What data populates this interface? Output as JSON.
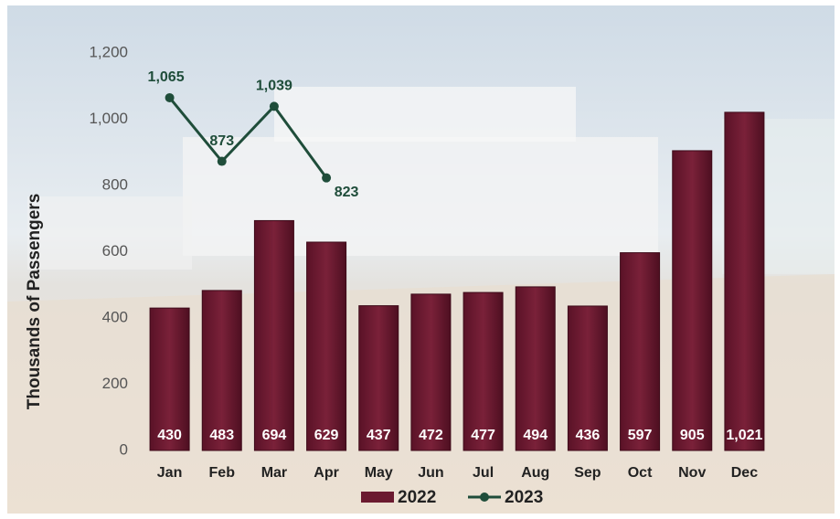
{
  "chart_data": {
    "type": "bar",
    "y_label": "Thousands of Passengers",
    "categories": [
      "Jan",
      "Feb",
      "Mar",
      "Apr",
      "May",
      "Jun",
      "Jul",
      "Aug",
      "Sep",
      "Oct",
      "Nov",
      "Dec"
    ],
    "series": [
      {
        "name": "2022",
        "type": "bar",
        "color": "#6b1a30",
        "values": [
          430,
          483,
          694,
          629,
          437,
          472,
          477,
          494,
          436,
          597,
          905,
          1021
        ],
        "value_labels": [
          "430",
          "483",
          "694",
          "629",
          "437",
          "472",
          "477",
          "494",
          "436",
          "597",
          "905",
          "1,021"
        ]
      },
      {
        "name": "2023",
        "type": "line",
        "color": "#1f4d3a",
        "values": [
          1065,
          873,
          1039,
          823,
          null,
          null,
          null,
          null,
          null,
          null,
          null,
          null
        ],
        "value_labels": [
          "1,065",
          "873",
          "1,039",
          "823",
          null,
          null,
          null,
          null,
          null,
          null,
          null,
          null
        ]
      }
    ],
    "ylim": [
      0,
      1200
    ],
    "yticks": [
      0,
      200,
      400,
      600,
      800,
      {
        "value": 1000,
        "label": "1,000"
      },
      {
        "value": 1200,
        "label": "1,200"
      }
    ],
    "grid": false,
    "legend": "bottom"
  }
}
